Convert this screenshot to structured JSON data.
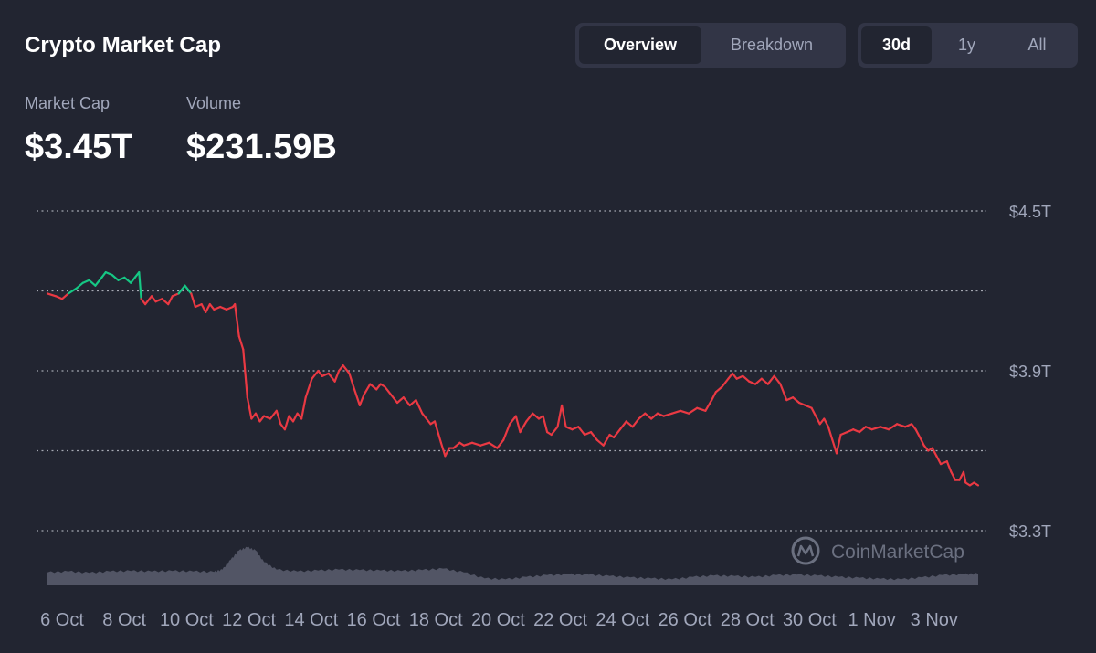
{
  "header": {
    "title": "Crypto Market Cap"
  },
  "view_tabs": [
    {
      "label": "Overview",
      "active": true
    },
    {
      "label": "Breakdown",
      "active": false
    }
  ],
  "range_tabs": [
    {
      "label": "30d",
      "active": true
    },
    {
      "label": "1y",
      "active": false
    },
    {
      "label": "All",
      "active": false
    }
  ],
  "stats": {
    "market_cap": {
      "label": "Market Cap",
      "value": "$3.45T"
    },
    "volume": {
      "label": "Volume",
      "value": "$231.59B"
    }
  },
  "watermark": "CoinMarketCap",
  "colors": {
    "up": "#16c784",
    "down": "#ea3943",
    "grid": "#d0d3dc",
    "volume": "#5a5e6e",
    "background": "#222531"
  },
  "chart_data": {
    "type": "line",
    "y_axis_ticks": [
      "$4.5T",
      "$3.9T",
      "$3.3T"
    ],
    "ylim": [
      3.3,
      4.5
    ],
    "grid_lines": [
      4.5,
      4.2,
      3.9,
      3.6,
      3.3
    ],
    "x_ticks": [
      "6 Oct",
      "8 Oct",
      "10 Oct",
      "12 Oct",
      "14 Oct",
      "16 Oct",
      "18 Oct",
      "20 Oct",
      "22 Oct",
      "24 Oct",
      "26 Oct",
      "28 Oct",
      "30 Oct",
      "1 Nov",
      "3 Nov"
    ],
    "x_start": "6 Oct",
    "x_end": "4 Nov",
    "baseline": 4.19,
    "series": [
      {
        "values": [
          [
            0.0,
            4.19
          ],
          [
            0.2,
            4.18
          ],
          [
            0.35,
            4.17
          ],
          [
            0.5,
            4.19
          ],
          [
            0.7,
            4.21
          ],
          [
            0.85,
            4.23
          ],
          [
            1.0,
            4.24
          ],
          [
            1.15,
            4.22
          ],
          [
            1.3,
            4.25
          ],
          [
            1.4,
            4.27
          ],
          [
            1.55,
            4.26
          ],
          [
            1.7,
            4.24
          ],
          [
            1.85,
            4.25
          ],
          [
            2.0,
            4.23
          ],
          [
            2.1,
            4.25
          ],
          [
            2.2,
            4.27
          ],
          [
            2.25,
            4.17
          ],
          [
            2.35,
            4.15
          ],
          [
            2.5,
            4.18
          ],
          [
            2.6,
            4.16
          ],
          [
            2.75,
            4.17
          ],
          [
            2.9,
            4.15
          ],
          [
            3.0,
            4.18
          ],
          [
            3.15,
            4.19
          ],
          [
            3.3,
            4.22
          ],
          [
            3.45,
            4.19
          ],
          [
            3.55,
            4.14
          ],
          [
            3.7,
            4.15
          ],
          [
            3.8,
            4.12
          ],
          [
            3.9,
            4.15
          ],
          [
            4.0,
            4.13
          ],
          [
            4.15,
            4.14
          ],
          [
            4.3,
            4.13
          ],
          [
            4.45,
            4.14
          ],
          [
            4.5,
            4.15
          ],
          [
            4.6,
            4.03
          ],
          [
            4.7,
            3.98
          ],
          [
            4.8,
            3.8
          ],
          [
            4.9,
            3.72
          ],
          [
            5.0,
            3.74
          ],
          [
            5.1,
            3.71
          ],
          [
            5.2,
            3.73
          ],
          [
            5.35,
            3.72
          ],
          [
            5.5,
            3.75
          ],
          [
            5.6,
            3.7
          ],
          [
            5.7,
            3.68
          ],
          [
            5.8,
            3.73
          ],
          [
            5.9,
            3.71
          ],
          [
            6.0,
            3.74
          ],
          [
            6.1,
            3.72
          ],
          [
            6.2,
            3.8
          ],
          [
            6.35,
            3.87
          ],
          [
            6.5,
            3.9
          ],
          [
            6.6,
            3.88
          ],
          [
            6.75,
            3.89
          ],
          [
            6.9,
            3.86
          ],
          [
            7.0,
            3.9
          ],
          [
            7.1,
            3.92
          ],
          [
            7.25,
            3.89
          ],
          [
            7.35,
            3.84
          ],
          [
            7.5,
            3.77
          ],
          [
            7.6,
            3.81
          ],
          [
            7.75,
            3.85
          ],
          [
            7.9,
            3.83
          ],
          [
            8.0,
            3.85
          ],
          [
            8.1,
            3.84
          ],
          [
            8.25,
            3.81
          ],
          [
            8.4,
            3.78
          ],
          [
            8.55,
            3.8
          ],
          [
            8.7,
            3.77
          ],
          [
            8.85,
            3.79
          ],
          [
            9.0,
            3.74
          ],
          [
            9.1,
            3.72
          ],
          [
            9.2,
            3.7
          ],
          [
            9.3,
            3.71
          ],
          [
            9.45,
            3.63
          ],
          [
            9.55,
            3.58
          ],
          [
            9.65,
            3.61
          ],
          [
            9.75,
            3.61
          ],
          [
            9.9,
            3.63
          ],
          [
            10.0,
            3.62
          ],
          [
            10.2,
            3.63
          ],
          [
            10.4,
            3.62
          ],
          [
            10.6,
            3.63
          ],
          [
            10.8,
            3.61
          ],
          [
            10.95,
            3.64
          ],
          [
            11.1,
            3.7
          ],
          [
            11.25,
            3.73
          ],
          [
            11.35,
            3.67
          ],
          [
            11.5,
            3.71
          ],
          [
            11.65,
            3.74
          ],
          [
            11.8,
            3.72
          ],
          [
            11.9,
            3.73
          ],
          [
            12.0,
            3.67
          ],
          [
            12.1,
            3.66
          ],
          [
            12.25,
            3.69
          ],
          [
            12.35,
            3.77
          ],
          [
            12.45,
            3.69
          ],
          [
            12.6,
            3.68
          ],
          [
            12.75,
            3.69
          ],
          [
            12.9,
            3.66
          ],
          [
            13.05,
            3.67
          ],
          [
            13.2,
            3.64
          ],
          [
            13.35,
            3.62
          ],
          [
            13.5,
            3.66
          ],
          [
            13.6,
            3.65
          ],
          [
            13.75,
            3.68
          ],
          [
            13.9,
            3.71
          ],
          [
            14.05,
            3.69
          ],
          [
            14.2,
            3.72
          ],
          [
            14.35,
            3.74
          ],
          [
            14.5,
            3.72
          ],
          [
            14.65,
            3.74
          ],
          [
            14.8,
            3.73
          ],
          [
            15.0,
            3.74
          ],
          [
            15.2,
            3.75
          ],
          [
            15.4,
            3.74
          ],
          [
            15.6,
            3.76
          ],
          [
            15.8,
            3.75
          ],
          [
            15.95,
            3.79
          ],
          [
            16.05,
            3.82
          ],
          [
            16.2,
            3.84
          ],
          [
            16.35,
            3.87
          ],
          [
            16.45,
            3.89
          ],
          [
            16.55,
            3.87
          ],
          [
            16.7,
            3.88
          ],
          [
            16.85,
            3.86
          ],
          [
            17.0,
            3.85
          ],
          [
            17.15,
            3.87
          ],
          [
            17.3,
            3.85
          ],
          [
            17.45,
            3.88
          ],
          [
            17.6,
            3.85
          ],
          [
            17.75,
            3.79
          ],
          [
            17.9,
            3.8
          ],
          [
            18.05,
            3.78
          ],
          [
            18.2,
            3.77
          ],
          [
            18.35,
            3.76
          ],
          [
            18.45,
            3.73
          ],
          [
            18.55,
            3.7
          ],
          [
            18.65,
            3.72
          ],
          [
            18.75,
            3.69
          ],
          [
            18.85,
            3.64
          ],
          [
            18.95,
            3.59
          ],
          [
            19.05,
            3.66
          ],
          [
            19.2,
            3.67
          ],
          [
            19.35,
            3.68
          ],
          [
            19.5,
            3.67
          ],
          [
            19.65,
            3.69
          ],
          [
            19.8,
            3.68
          ],
          [
            20.0,
            3.69
          ],
          [
            20.2,
            3.68
          ],
          [
            20.4,
            3.7
          ],
          [
            20.6,
            3.69
          ],
          [
            20.75,
            3.7
          ],
          [
            20.85,
            3.68
          ],
          [
            20.95,
            3.65
          ],
          [
            21.05,
            3.62
          ],
          [
            21.15,
            3.6
          ],
          [
            21.25,
            3.61
          ],
          [
            21.35,
            3.58
          ],
          [
            21.45,
            3.55
          ],
          [
            21.6,
            3.56
          ],
          [
            21.7,
            3.52
          ],
          [
            21.8,
            3.49
          ],
          [
            21.9,
            3.49
          ],
          [
            22.0,
            3.52
          ],
          [
            22.05,
            3.48
          ],
          [
            22.15,
            3.47
          ],
          [
            22.25,
            3.48
          ],
          [
            22.35,
            3.47
          ]
        ]
      }
    ],
    "volume": [
      [
        0,
        0.28
      ],
      [
        0.5,
        0.3
      ],
      [
        1,
        0.27
      ],
      [
        1.5,
        0.3
      ],
      [
        2,
        0.31
      ],
      [
        2.5,
        0.3
      ],
      [
        3,
        0.31
      ],
      [
        3.5,
        0.3
      ],
      [
        4,
        0.29
      ],
      [
        4.2,
        0.34
      ],
      [
        4.4,
        0.55
      ],
      [
        4.6,
        0.75
      ],
      [
        4.8,
        0.82
      ],
      [
        5.0,
        0.75
      ],
      [
        5.2,
        0.5
      ],
      [
        5.5,
        0.34
      ],
      [
        6,
        0.3
      ],
      [
        6.5,
        0.32
      ],
      [
        7,
        0.34
      ],
      [
        7.5,
        0.33
      ],
      [
        8,
        0.32
      ],
      [
        8.5,
        0.31
      ],
      [
        9,
        0.33
      ],
      [
        9.5,
        0.36
      ],
      [
        10,
        0.28
      ],
      [
        10.5,
        0.15
      ],
      [
        11,
        0.13
      ],
      [
        11.5,
        0.18
      ],
      [
        12,
        0.22
      ],
      [
        12.5,
        0.24
      ],
      [
        13,
        0.23
      ],
      [
        13.5,
        0.2
      ],
      [
        14,
        0.17
      ],
      [
        14.5,
        0.15
      ],
      [
        15,
        0.13
      ],
      [
        15.5,
        0.18
      ],
      [
        16,
        0.21
      ],
      [
        16.5,
        0.2
      ],
      [
        17,
        0.18
      ],
      [
        17.5,
        0.22
      ],
      [
        18,
        0.23
      ],
      [
        18.5,
        0.21
      ],
      [
        19,
        0.18
      ],
      [
        19.5,
        0.16
      ],
      [
        20,
        0.14
      ],
      [
        20.5,
        0.13
      ],
      [
        21,
        0.17
      ],
      [
        21.5,
        0.22
      ],
      [
        22,
        0.24
      ],
      [
        22.35,
        0.25
      ]
    ]
  }
}
